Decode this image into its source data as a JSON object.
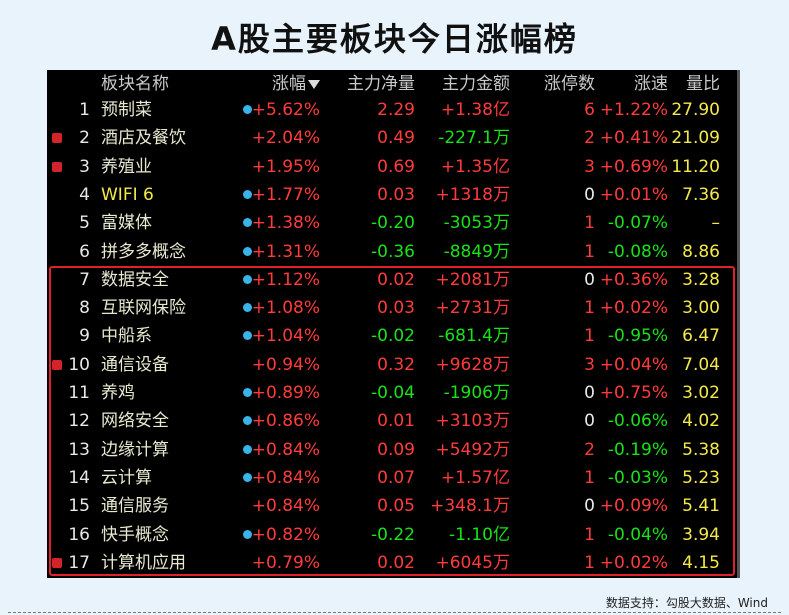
{
  "header": {
    "title": "A股主要板块今日涨幅榜"
  },
  "table": {
    "columns": [
      "板块名称",
      "涨幅",
      "主力净量",
      "主力金额",
      "涨停数",
      "涨速",
      "量比"
    ],
    "rows": [
      {
        "rank": "1",
        "name": "预制菜",
        "icon": "info",
        "cells": [
          "+5.62%",
          "2.29",
          "+1.38亿",
          "6",
          "+1.22%",
          "27.90"
        ]
      },
      {
        "rank": "2",
        "name": "酒店及餐饮",
        "icon": "expand",
        "cells": [
          "+2.04%",
          "0.49",
          "-227.1万",
          "2",
          "+0.41%",
          "21.09"
        ]
      },
      {
        "rank": "3",
        "name": "养殖业",
        "icon": "expand",
        "cells": [
          "+1.95%",
          "0.69",
          "+1.35亿",
          "3",
          "+0.69%",
          "11.20"
        ]
      },
      {
        "rank": "4",
        "name": "WIFI 6",
        "icon": "info",
        "cells": [
          "+1.77%",
          "0.03",
          "+1318万",
          "0",
          "+0.01%",
          "7.36"
        ]
      },
      {
        "rank": "5",
        "name": "富媒体",
        "icon": "info",
        "cells": [
          "+1.38%",
          "-0.20",
          "-3053万",
          "1",
          "-0.07%",
          "–"
        ]
      },
      {
        "rank": "6",
        "name": "拼多多概念",
        "icon": "info",
        "cells": [
          "+1.31%",
          "-0.36",
          "-8849万",
          "1",
          "-0.08%",
          "8.86"
        ]
      },
      {
        "rank": "7",
        "name": "数据安全",
        "icon": "info",
        "cells": [
          "+1.12%",
          "0.02",
          "+2081万",
          "0",
          "+0.36%",
          "3.28"
        ]
      },
      {
        "rank": "8",
        "name": "互联网保险",
        "icon": "info",
        "cells": [
          "+1.08%",
          "0.03",
          "+2731万",
          "1",
          "+0.02%",
          "3.00"
        ]
      },
      {
        "rank": "9",
        "name": "中船系",
        "icon": "info",
        "cells": [
          "+1.04%",
          "-0.02",
          "-681.4万",
          "1",
          "-0.95%",
          "6.47"
        ]
      },
      {
        "rank": "10",
        "name": "通信设备",
        "icon": "expand",
        "cells": [
          "+0.94%",
          "0.32",
          "+9628万",
          "3",
          "+0.04%",
          "7.04"
        ]
      },
      {
        "rank": "11",
        "name": "养鸡",
        "icon": "info",
        "cells": [
          "+0.89%",
          "-0.04",
          "-1906万",
          "0",
          "+0.75%",
          "3.02"
        ]
      },
      {
        "rank": "12",
        "name": "网络安全",
        "icon": "info",
        "cells": [
          "+0.86%",
          "0.01",
          "+3103万",
          "0",
          "-0.06%",
          "4.02"
        ]
      },
      {
        "rank": "13",
        "name": "边缘计算",
        "icon": "info",
        "cells": [
          "+0.84%",
          "0.09",
          "+5492万",
          "2",
          "-0.19%",
          "5.38"
        ]
      },
      {
        "rank": "14",
        "name": "云计算",
        "icon": "info",
        "cells": [
          "+0.84%",
          "0.07",
          "+1.57亿",
          "1",
          "-0.03%",
          "5.23"
        ]
      },
      {
        "rank": "15",
        "name": "通信服务",
        "icon": "none",
        "cells": [
          "+0.84%",
          "0.05",
          "+348.1万",
          "0",
          "+0.09%",
          "5.41"
        ]
      },
      {
        "rank": "16",
        "name": "快手概念",
        "icon": "info",
        "cells": [
          "+0.82%",
          "-0.22",
          "-1.10亿",
          "1",
          "-0.04%",
          "3.94"
        ]
      },
      {
        "rank": "17",
        "name": "计算机应用",
        "icon": "expand",
        "cells": [
          "+0.79%",
          "0.02",
          "+6045万",
          "1",
          "+0.02%",
          "4.15"
        ]
      }
    ]
  },
  "footer": {
    "source": "数据支持：勾股大数据、Wind"
  }
}
